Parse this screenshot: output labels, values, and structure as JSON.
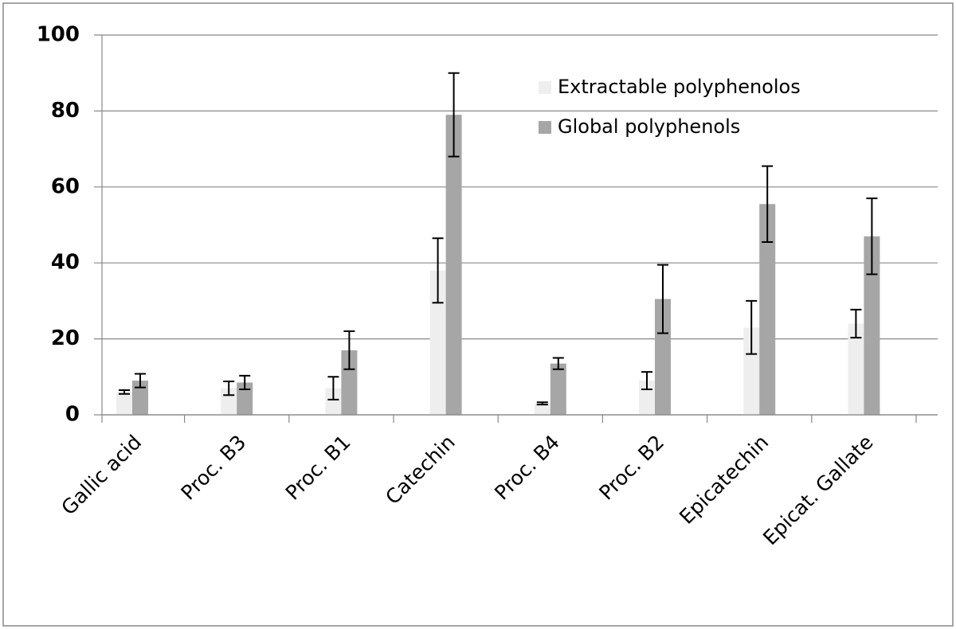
{
  "chart_data": {
    "type": "bar",
    "categories": [
      "Gallic acid",
      "Proc. B3",
      "Proc. B1",
      "Catechin",
      "Proc. B4",
      "Proc. B2",
      "Epicatechin",
      "Epicat. Gallate"
    ],
    "series": [
      {
        "name": "Extractable polyphenolos",
        "color": "#eeeeee",
        "values": [
          6,
          7,
          7,
          38,
          3,
          9,
          23,
          24
        ],
        "errors": [
          0.5,
          1.8,
          3,
          8.5,
          0.3,
          2.3,
          7,
          3.7
        ]
      },
      {
        "name": "Global polyphenols",
        "color": "#a6a6a6",
        "values": [
          9,
          8.5,
          17,
          79,
          13.5,
          30.5,
          55.5,
          47
        ],
        "errors": [
          1.8,
          1.8,
          5,
          11,
          1.5,
          9,
          10,
          10
        ]
      }
    ],
    "ylim": [
      0,
      100
    ],
    "yticks": [
      0,
      20,
      40,
      60,
      80,
      100
    ],
    "grid": true,
    "legend": "top-right"
  }
}
